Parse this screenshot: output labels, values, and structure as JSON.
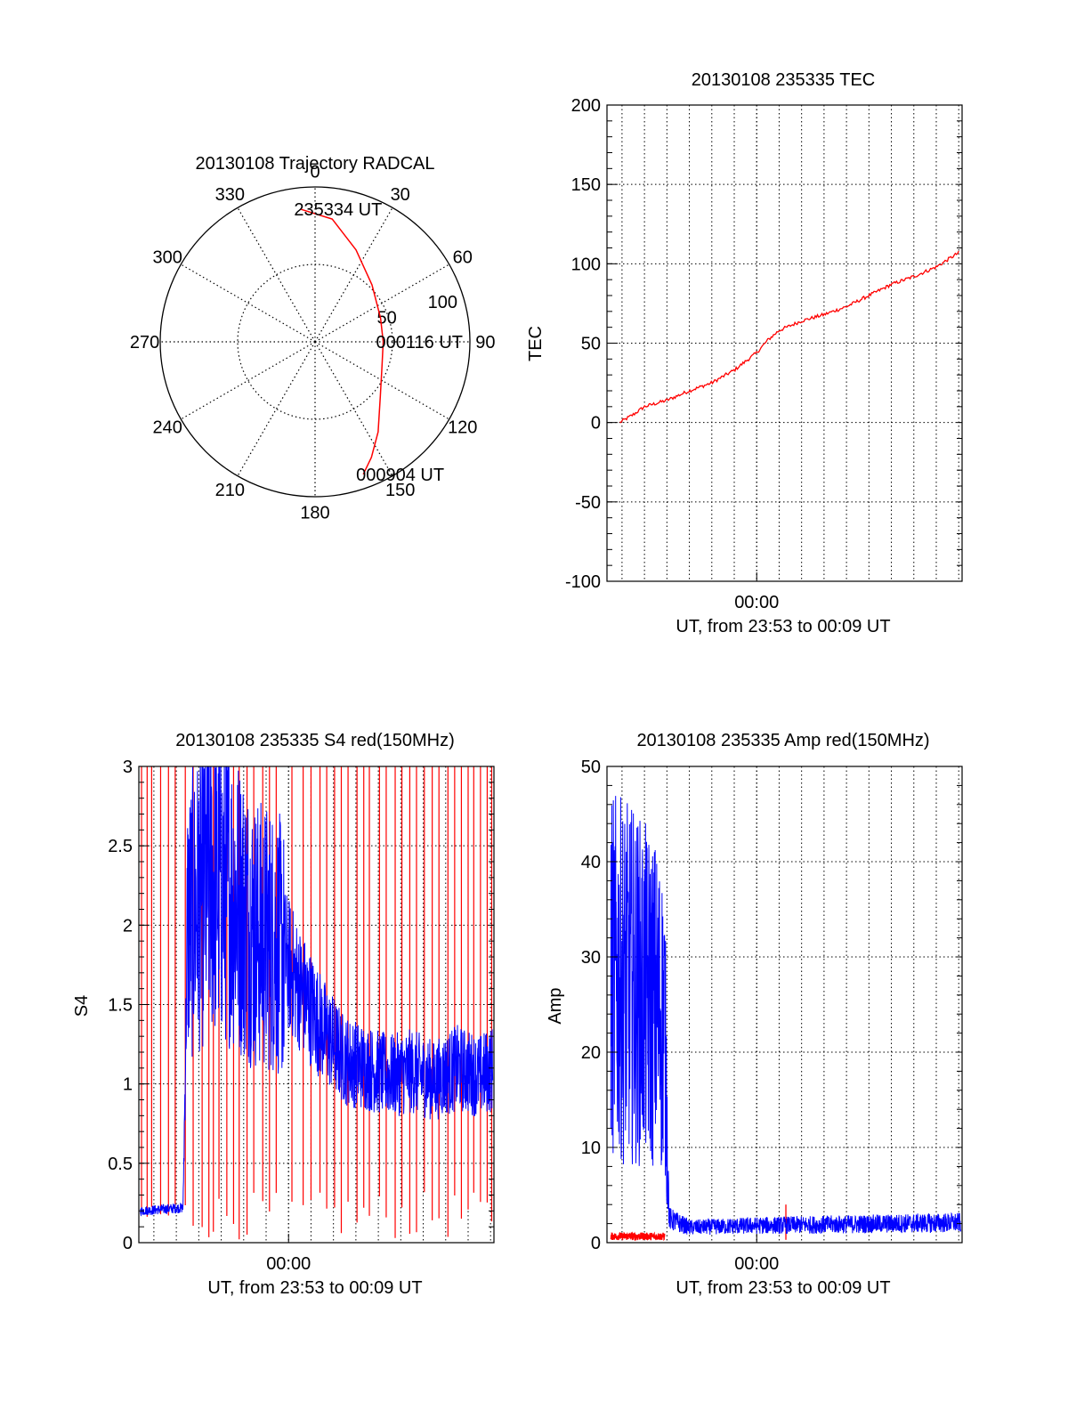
{
  "colors": {
    "red": "#ff0000",
    "blue": "#0000ff",
    "axis": "#000000",
    "grid": "#000000"
  },
  "chart_data": [
    {
      "id": "trajectory",
      "type": "polar",
      "title": "20130108 Trajectory RADCAL",
      "azimuth_labels": [
        "0",
        "30",
        "60",
        "90",
        "120",
        "150",
        "180",
        "210",
        "240",
        "270",
        "300",
        "330"
      ],
      "azimuth_ticks_deg": [
        0,
        30,
        60,
        90,
        120,
        150,
        180,
        210,
        240,
        270,
        300,
        330
      ],
      "radial_labels": [
        "50",
        "100"
      ],
      "radial_ticks": [
        50,
        100
      ],
      "radial_max": 100,
      "grid": true,
      "series": [
        {
          "color": "red",
          "azimuth_deg": [
            354,
            8,
            24,
            45,
            70,
            90,
            110,
            130,
            145,
            154,
            160
          ],
          "radius": [
            86,
            80,
            65,
            52,
            45,
            44,
            46,
            55,
            71,
            83,
            91
          ]
        }
      ],
      "annotations": [
        {
          "text": "235334 UT",
          "azimuth_deg": 354,
          "radius": 86
        },
        {
          "text": "000116 UT",
          "azimuth_deg": 90,
          "radius": 44
        },
        {
          "text": "000904 UT",
          "azimuth_deg": 160,
          "radius": 91
        }
      ]
    },
    {
      "id": "tec",
      "type": "line",
      "title": "20130108 235335 TEC",
      "xlabel": "UT, from 23:53 to 00:09 UT",
      "ylabel": "TEC",
      "xlim": [
        -6.67,
        9.15
      ],
      "ylim": [
        -100,
        200
      ],
      "yticks": [
        -100,
        -50,
        0,
        50,
        100,
        150,
        200
      ],
      "ytick_labels": [
        "-100",
        "-50",
        "0",
        "50",
        "100",
        "150",
        "200"
      ],
      "xtick_labels": [
        {
          "x": 0,
          "label": "00:00"
        }
      ],
      "grid": true,
      "series": [
        {
          "color": "red",
          "x": [
            -6.1,
            -5.5,
            -5.0,
            -4.0,
            -3.0,
            -2.0,
            -1.0,
            0.0,
            0.5,
            1.0,
            2.0,
            3.0,
            4.0,
            5.0,
            6.0,
            7.0,
            8.0,
            9.0
          ],
          "y": [
            0,
            5,
            10,
            14,
            20,
            25,
            33,
            44,
            52,
            58,
            64,
            68,
            73,
            80,
            87,
            92,
            98,
            107
          ]
        }
      ]
    },
    {
      "id": "s4",
      "type": "line",
      "title": "20130108 235335 S4 red(150MHz)",
      "xlabel": "UT, from 23:53 to 00:09 UT",
      "ylabel": "S4",
      "xlim": [
        -6.67,
        9.15
      ],
      "ylim": [
        0,
        3
      ],
      "yticks": [
        0,
        0.5,
        1,
        1.5,
        2,
        2.5,
        3
      ],
      "ytick_labels": [
        "0",
        "0.5",
        "1",
        "1.5",
        "2",
        "2.5",
        "3"
      ],
      "xtick_labels": [
        {
          "x": 0,
          "label": "00:00"
        }
      ],
      "grid": true,
      "series": [
        {
          "color": "red",
          "style": "vertical-spikes",
          "x": [
            -6.55,
            -6.3,
            -6.1,
            -5.7,
            -5.35,
            -5.05,
            -4.6,
            -4.25,
            -3.85,
            -3.55,
            -3.35,
            -3.1,
            -2.75,
            -2.45,
            -2.2,
            -1.85,
            -1.55,
            -1.15,
            -0.85,
            -0.55,
            0.15,
            0.65,
            1.0,
            1.4,
            1.7,
            2.05,
            2.35,
            2.65,
            3.05,
            3.35,
            3.6,
            4.05,
            4.35,
            4.75,
            5.05,
            5.4,
            5.7,
            6.05,
            6.4,
            6.7,
            7.1,
            7.4,
            7.7,
            8.0,
            8.25,
            8.55,
            8.85,
            9.05
          ]
        },
        {
          "color": "blue",
          "style": "noisy",
          "x": [
            -6.6,
            -4.7,
            -4.5,
            -3.5,
            -2.5,
            -1.5,
            -0.5,
            0.5,
            1.5,
            2.5,
            3.5,
            4.5,
            5.5,
            6.5,
            7.5,
            8.5,
            9.1
          ],
          "y": [
            0.2,
            0.22,
            2.0,
            2.3,
            2.2,
            1.95,
            1.9,
            1.6,
            1.35,
            1.15,
            1.1,
            1.05,
            1.08,
            1.02,
            1.1,
            1.05,
            1.1
          ]
        }
      ]
    },
    {
      "id": "amp",
      "type": "line",
      "title": "20130108 235335 Amp red(150MHz)",
      "xlabel": "UT, from 23:53 to 00:09 UT",
      "ylabel": "Amp",
      "xlim": [
        -6.67,
        9.15
      ],
      "ylim": [
        0,
        50
      ],
      "yticks": [
        0,
        10,
        20,
        30,
        40,
        50
      ],
      "ytick_labels": [
        "0",
        "10",
        "20",
        "30",
        "40",
        "50"
      ],
      "xtick_labels": [
        {
          "x": 0,
          "label": "00:00"
        }
      ],
      "grid": true,
      "series": [
        {
          "color": "red",
          "x": [
            -6.5,
            -4.1
          ],
          "y": [
            0.5,
            0.5
          ],
          "extra_spike": {
            "x": 1.3,
            "y": 4
          }
        },
        {
          "color": "blue",
          "style": "noisy",
          "x": [
            -6.5,
            -5.5,
            -4.5,
            -4.1,
            -3.9,
            -3.0,
            0.0,
            3.0,
            6.0,
            9.1
          ],
          "y": [
            28,
            27,
            25,
            23,
            2.5,
            1.6,
            1.8,
            1.9,
            2.0,
            2.1
          ]
        }
      ]
    }
  ]
}
